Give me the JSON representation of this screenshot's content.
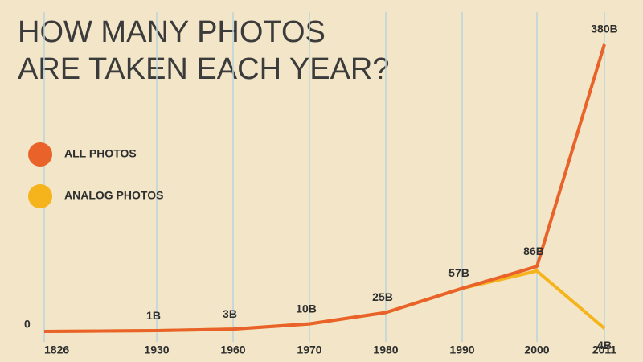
{
  "chart_data": {
    "type": "line",
    "title": [
      "HOW MANY PHOTOS",
      "ARE TAKEN EACH YEAR?"
    ],
    "categories": [
      "1826",
      "1930",
      "1960",
      "1970",
      "1980",
      "1990",
      "2000",
      "2011"
    ],
    "series": [
      {
        "name": "ALL PHOTOS",
        "color": "#e8622a",
        "values": [
          0,
          1,
          3,
          10,
          25,
          57,
          86,
          380
        ],
        "value_labels": [
          "0",
          "1B",
          "3B",
          "10B",
          "25B",
          "57B",
          "86B",
          "380B"
        ]
      },
      {
        "name": "ANALOG PHOTOS",
        "color": "#f5b31c",
        "values": [
          0,
          1,
          3,
          10,
          25,
          57,
          80,
          4
        ],
        "value_labels": [
          null,
          null,
          null,
          null,
          null,
          null,
          null,
          "4B"
        ]
      }
    ],
    "grid": true
  }
}
